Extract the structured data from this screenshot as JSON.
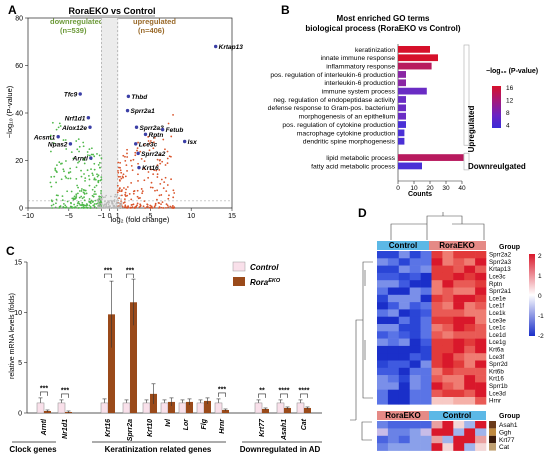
{
  "panels": {
    "A": {
      "label": "A",
      "title": "RoraEKO vs Control",
      "down_label": "downregulated",
      "down_count": "(n=539)",
      "up_label": "upregulated",
      "up_count": "(n=406)",
      "xlabel": "log₂ (fold change)",
      "ylabel": "−log₁₀ (P-value)",
      "colors": {
        "down": "#4fb84a",
        "up": "#d9542b",
        "ns": "#b8b8b8",
        "highlight": "#3b3fa6",
        "down_text": "#6d9a3a",
        "up_text": "#9a6a2a"
      }
    },
    "B": {
      "label": "B",
      "title1": "Most enriched GO terms",
      "title2": "biological process (RoraEKO vs Control)",
      "xlabel": "Counts",
      "legend_title": "−log₁₀ (P-value)",
      "up_group": "Upregulated",
      "down_group": "Downreulgated"
    },
    "C": {
      "label": "C",
      "ylabel": "relative mRNA levels (folds)",
      "legend": [
        "Control",
        "Rora"
      ],
      "legend_sup": "EKO",
      "groups": [
        "Clock genes",
        "Keratinization related genes",
        "Downregulated in AD"
      ],
      "colors": {
        "control": "#f9e0ea",
        "ko": "#9a4a1a"
      }
    },
    "D": {
      "label": "D",
      "top_groups": [
        "Control",
        "RoraEKO"
      ],
      "bottom_groups": [
        "RoraEKO",
        "Control"
      ],
      "group_title": "Group",
      "scale_ticks": [
        "2",
        "1",
        "0",
        "-1",
        "-2"
      ]
    }
  },
  "chart_data": [
    {
      "type": "scatter",
      "title": "RoraEKO vs Control",
      "xlabel": "log₂ (fold change)",
      "ylabel": "−log₁₀ (P-value)",
      "xlim": [
        -10,
        15
      ],
      "ylim": [
        0,
        80
      ],
      "xticks": [
        -10,
        -5,
        -1,
        0,
        1,
        5,
        10,
        15
      ],
      "yticks": [
        0,
        20,
        40,
        60,
        80
      ],
      "labeled_points": [
        {
          "label": "Krtap13",
          "x": 13,
          "y": 68
        },
        {
          "label": "Tfc9",
          "x": -3.6,
          "y": 48
        },
        {
          "label": "Thbd",
          "x": 2.3,
          "y": 47
        },
        {
          "label": "Sprr2a1",
          "x": 2.2,
          "y": 41
        },
        {
          "label": "Nrf1d1",
          "x": -2.6,
          "y": 38
        },
        {
          "label": "Alox12e",
          "x": -2.4,
          "y": 34
        },
        {
          "label": "Acsm1",
          "x": -6.3,
          "y": 30
        },
        {
          "label": "Npas2",
          "x": -4.8,
          "y": 27
        },
        {
          "label": "Arntl",
          "x": -2.3,
          "y": 21
        },
        {
          "label": "Sprr2a3",
          "x": 3.3,
          "y": 34
        },
        {
          "label": "Rptn",
          "x": 4.4,
          "y": 31
        },
        {
          "label": "Fetub",
          "x": 6.5,
          "y": 33
        },
        {
          "label": "Lce3c",
          "x": 3.2,
          "y": 27
        },
        {
          "label": "Isx",
          "x": 9.2,
          "y": 28
        },
        {
          "label": "Sprr2a2",
          "x": 3.5,
          "y": 23
        },
        {
          "label": "Krt16",
          "x": 3.6,
          "y": 17
        }
      ]
    },
    {
      "type": "bar",
      "title": "Most enriched GO terms biological process (RoraEKO vs Control)",
      "xlabel": "Counts",
      "xlim": [
        0,
        40
      ],
      "xticks": [
        0,
        10,
        20,
        30,
        40
      ],
      "categories": [
        "keratinization",
        "innate immune response",
        "inflammatory response",
        "pos. regulation of interleukin-6 production",
        "interleukin-6 production",
        "immune system process",
        "neg. regulation of endopeptidase activity",
        "defense response to Gram-pos. bacterium",
        "morphogenesis of an epithelium",
        "pos. regulation of cytokine production",
        "macrophage cytokine production",
        "dendritic spine morphogenesis",
        "lipid metabolic process",
        "fatty acid metabolic process"
      ],
      "values": [
        20,
        25,
        21,
        5,
        5,
        18,
        5,
        5,
        5,
        5,
        4,
        4,
        41,
        15
      ],
      "pvalue": [
        16,
        14,
        12,
        9,
        8,
        7,
        7,
        6,
        6,
        5,
        5,
        4,
        11,
        5
      ],
      "group": [
        "Upregulated",
        "Upregulated",
        "Upregulated",
        "Upregulated",
        "Upregulated",
        "Upregulated",
        "Upregulated",
        "Upregulated",
        "Upregulated",
        "Upregulated",
        "Upregulated",
        "Upregulated",
        "Downreulgated",
        "Downreulgated"
      ],
      "color_scale": {
        "ticks": [
          16,
          12,
          8,
          4
        ],
        "colors": [
          "#d6102a",
          "#a4187a",
          "#6a22c4",
          "#3a2ad6"
        ]
      }
    },
    {
      "type": "bar",
      "ylabel": "relative mRNA levels (folds)",
      "ylim": [
        0,
        15
      ],
      "yticks": [
        0,
        5,
        10,
        15
      ],
      "categories": [
        "Arntl",
        "Nr1d1",
        "Krt16",
        "Sprr2a",
        "Krt10",
        "Ivl",
        "Lor",
        "Flg",
        "Hrnr",
        "Krt77",
        "Asah1",
        "Cat"
      ],
      "series": [
        {
          "name": "Control",
          "values": [
            1,
            1,
            1,
            1,
            1,
            1,
            1,
            1,
            1,
            1,
            1,
            1
          ],
          "errors": [
            0.5,
            0.3,
            0.4,
            0.3,
            0.3,
            0.3,
            0.3,
            0.3,
            0.4,
            0.3,
            0.3,
            0.3
          ]
        },
        {
          "name": "Rora EKO",
          "values": [
            0.2,
            0.1,
            9.8,
            11,
            1.9,
            1.1,
            1.1,
            1.2,
            0.3,
            0.4,
            0.5,
            0.5
          ],
          "errors": [
            0.1,
            0.1,
            3.3,
            2.3,
            1.0,
            0.4,
            0.3,
            0.3,
            0.1,
            0.1,
            0.1,
            0.1
          ]
        }
      ],
      "significance": [
        {
          "genes": [
            "Arntl"
          ],
          "stars": "***"
        },
        {
          "genes": [
            "Nr1d1"
          ],
          "stars": "***"
        },
        {
          "genes": [
            "Krt16"
          ],
          "stars": "***"
        },
        {
          "genes": [
            "Sprr2a"
          ],
          "stars": "***"
        },
        {
          "genes": [
            "Hrnr"
          ],
          "stars": "***"
        },
        {
          "genes": [
            "Krt77"
          ],
          "stars": "**"
        },
        {
          "genes": [
            "Asah1"
          ],
          "stars": "****"
        },
        {
          "genes": [
            "Cat"
          ],
          "stars": "****"
        }
      ]
    },
    {
      "type": "heatmap",
      "rows": [
        "Sprr2a2",
        "Sprr2a3",
        "Krtap13",
        "Lce3c",
        "Rptn",
        "Sprr2a1",
        "Lce1e",
        "Lce1f",
        "Lce1k",
        "Lce3e",
        "Lce1c",
        "Lce1d",
        "Lce1g",
        "Krt6a",
        "Lce3f",
        "Sprr2d",
        "Krt6b",
        "Krt16",
        "Sprr1b",
        "Lce3d",
        "Hrnr"
      ],
      "bottom_rows": [
        "Asah1",
        "Ggh",
        "Krt77",
        "Cat"
      ],
      "color_scale": {
        "min": -2,
        "max": 2,
        "ticks": [
          2,
          1,
          0,
          -1,
          -2
        ],
        "colors": [
          "#1a2fc9",
          "#ffffff",
          "#d9182b"
        ]
      }
    }
  ]
}
